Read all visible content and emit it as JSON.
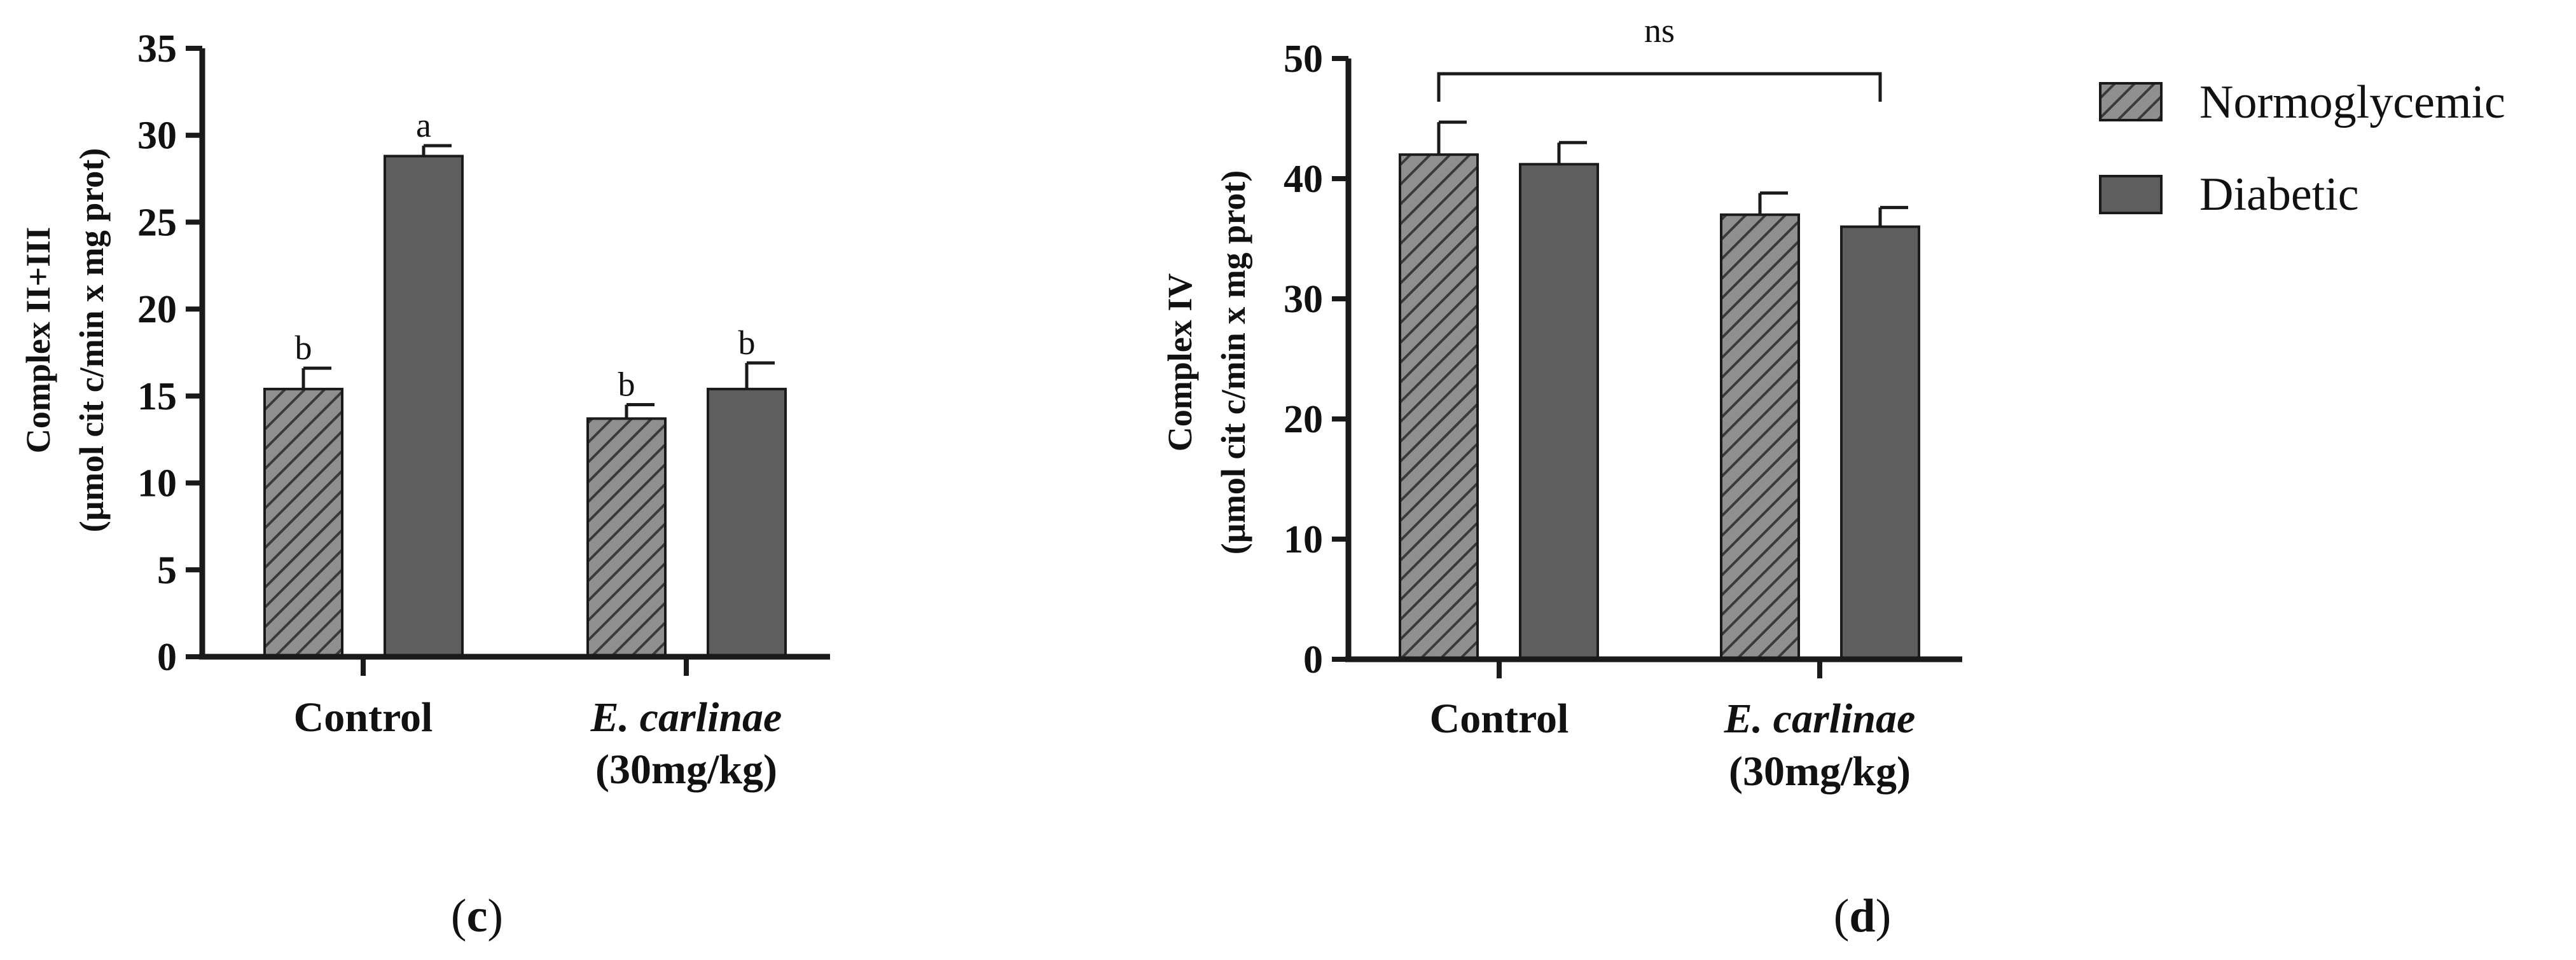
{
  "colors": {
    "normoglycemic_fill": "#8f8f8f",
    "normoglycemic_hatch": "#3a3a3a",
    "diabetic_fill": "#5e5e5e",
    "axis": "#1a1a1a"
  },
  "legend": {
    "items": [
      {
        "name": "Normoglycemic",
        "pattern": "hatched"
      },
      {
        "name": "Diabetic",
        "pattern": "solid"
      }
    ]
  },
  "chart_data": [
    {
      "type": "bar",
      "panel_label": {
        "open": "(",
        "letter": "c",
        "close": ")"
      },
      "ylabel": [
        "Complex II+III",
        "(µmol cit c/min x mg prot)"
      ],
      "ylim": [
        0,
        35
      ],
      "yticks": [
        0,
        5,
        10,
        15,
        20,
        25,
        30,
        35
      ],
      "categories": [
        {
          "line1": "Control",
          "line1_italic": false,
          "line2": ""
        },
        {
          "line1": "E. carlinae",
          "line1_italic": true,
          "line2": "(30mg/kg)"
        }
      ],
      "series": [
        {
          "name": "Normoglycemic",
          "values": [
            15.4,
            13.7
          ],
          "errors": [
            1.2,
            0.8
          ],
          "labels": [
            "b",
            "b"
          ]
        },
        {
          "name": "Diabetic",
          "values": [
            28.8,
            15.4
          ],
          "errors": [
            0.6,
            1.5
          ],
          "labels": [
            "a",
            "b"
          ]
        }
      ],
      "bracket": null
    },
    {
      "type": "bar",
      "panel_label": {
        "open": "(",
        "letter": "d",
        "close": ")"
      },
      "ylabel": [
        "Complex IV",
        "(µmol cit c/min x mg prot)"
      ],
      "ylim": [
        0,
        50
      ],
      "yticks": [
        0,
        10,
        20,
        30,
        40,
        50
      ],
      "categories": [
        {
          "line1": "Control",
          "line1_italic": false,
          "line2": ""
        },
        {
          "line1": "E. carlinae",
          "line1_italic": true,
          "line2": "(30mg/kg)"
        }
      ],
      "series": [
        {
          "name": "Normoglycemic",
          "values": [
            42.0,
            37.0
          ],
          "errors": [
            2.7,
            1.8
          ],
          "labels": [
            "",
            ""
          ]
        },
        {
          "name": "Diabetic",
          "values": [
            41.2,
            36.0
          ],
          "errors": [
            1.8,
            1.6
          ],
          "labels": [
            "",
            ""
          ]
        }
      ],
      "bracket": {
        "label": "ns",
        "from": [
          0,
          0
        ],
        "to": [
          1,
          1
        ]
      }
    }
  ]
}
